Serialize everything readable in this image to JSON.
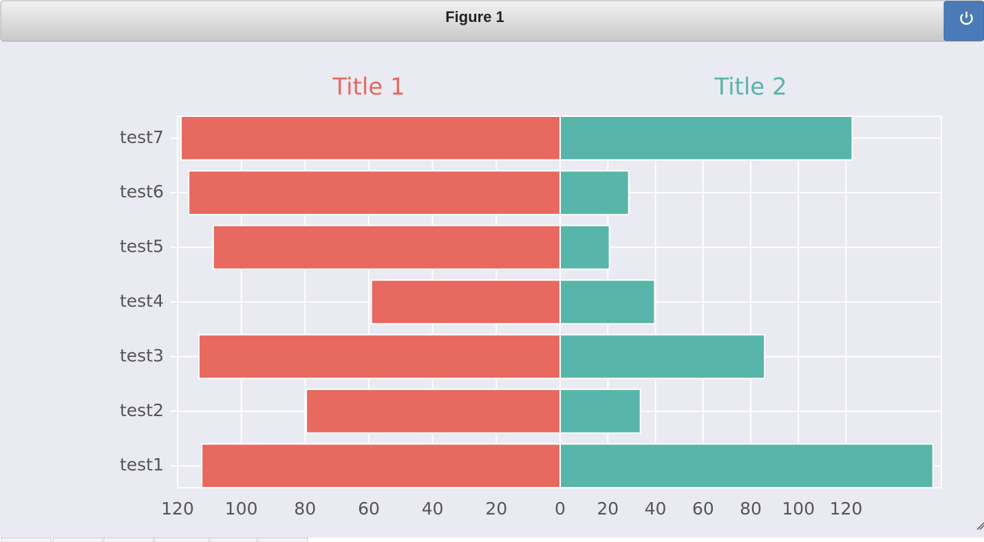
{
  "window": {
    "title": "Figure 1"
  },
  "chart_data": [
    {
      "type": "bar",
      "orientation": "horizontal",
      "title": "Title 1",
      "title_color": "#e8695f",
      "color": "#e8695f",
      "categories": [
        "test1",
        "test2",
        "test3",
        "test4",
        "test5",
        "test6",
        "test7"
      ],
      "values": [
        112.4,
        79.6,
        113.3,
        59.2,
        108.8,
        116.5,
        118.9
      ],
      "xlim": [
        120,
        0
      ],
      "xticks": [
        120,
        100,
        80,
        60,
        40,
        20
      ],
      "grid": true
    },
    {
      "type": "bar",
      "orientation": "horizontal",
      "title": "Title 2",
      "title_color": "#58b5a9",
      "color": "#58b5a9",
      "values": [
        156.5,
        33.7,
        85.8,
        39.7,
        20.7,
        28.8,
        122.6
      ],
      "xlim": [
        0,
        160
      ],
      "xticks": [
        0,
        20,
        40,
        60,
        80,
        100,
        120
      ],
      "grid": true
    }
  ]
}
